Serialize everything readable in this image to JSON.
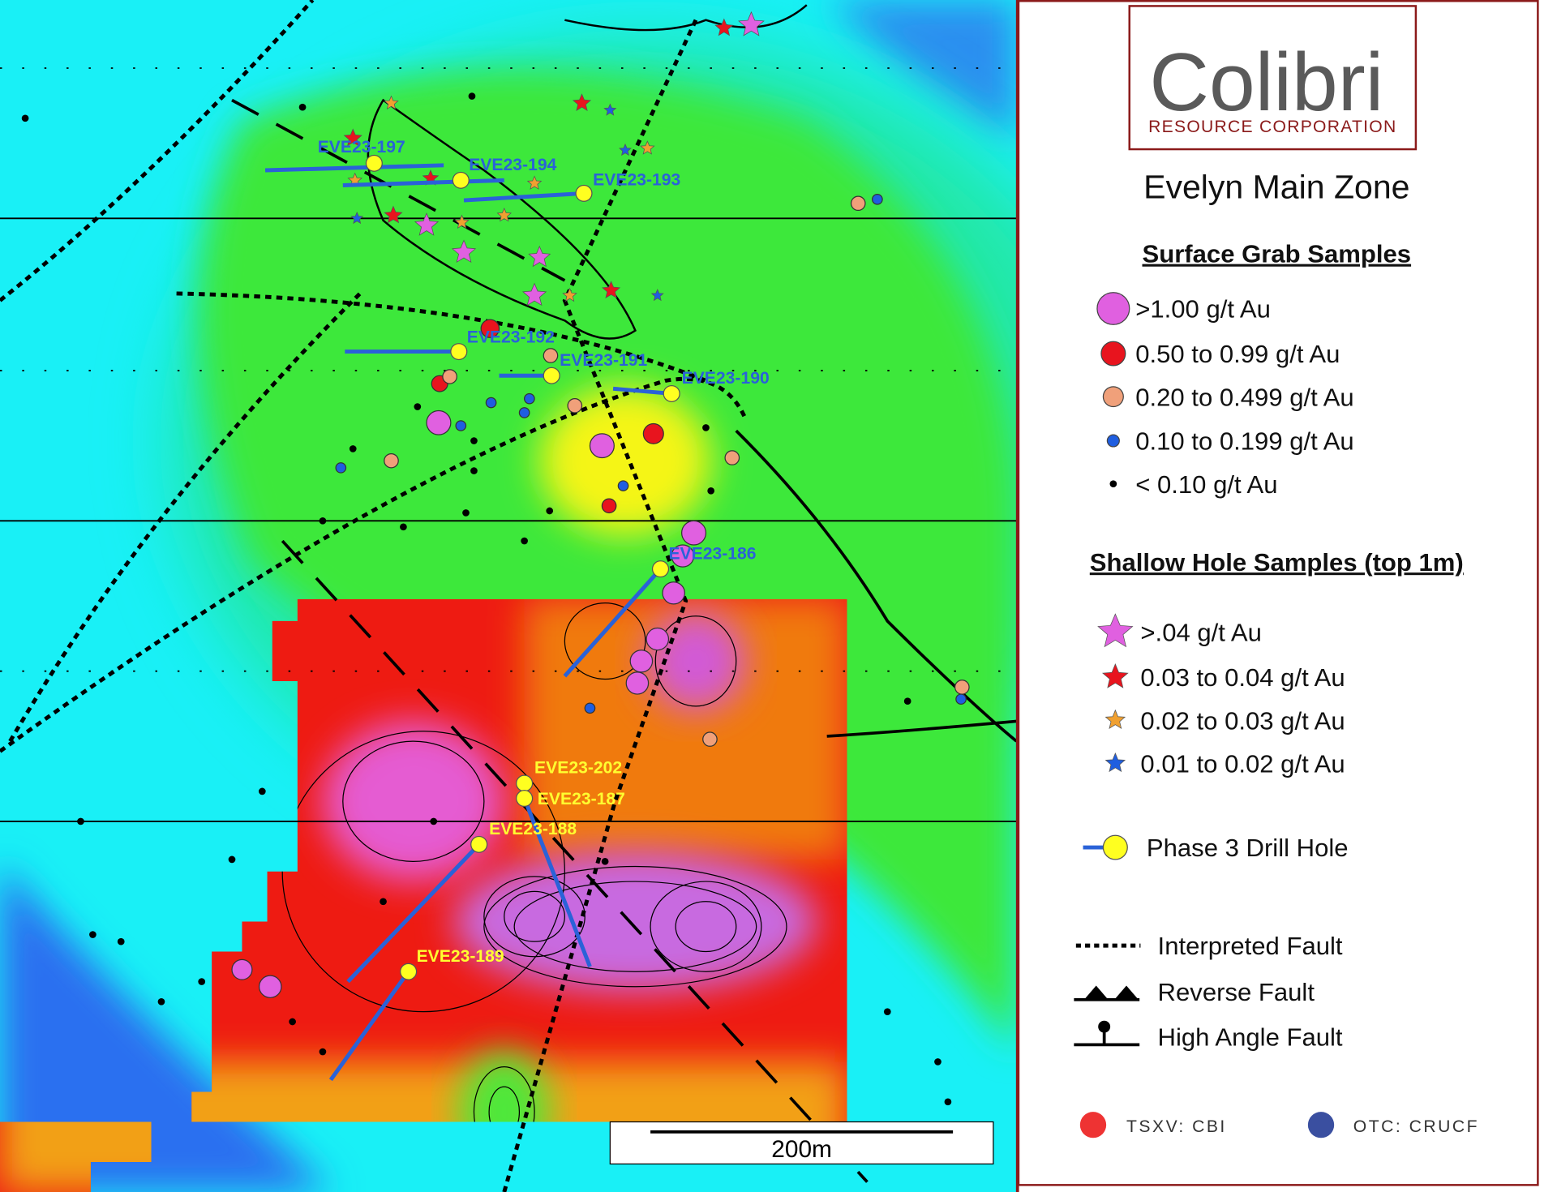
{
  "logo": {
    "name": "Colibri",
    "subtitle": "RESOURCE CORPORATION"
  },
  "title": "Evelyn Main Zone",
  "legend": {
    "surface_heading": "Surface Grab Samples",
    "surface": [
      ">1.00 g/t Au",
      "0.50 to 0.99 g/t Au",
      "0.20 to 0.499 g/t Au",
      "0.10 to 0.199 g/t Au",
      "< 0.10 g/t Au"
    ],
    "shallow_heading": "Shallow Hole Samples (top 1m)",
    "shallow": [
      ">.04 g/t Au",
      "0.03 to 0.04 g/t Au",
      "0.02 to 0.03 g/t Au",
      "0.01 to 0.02 g/t Au"
    ],
    "drill": "Phase 3 Drill Hole",
    "faults": [
      "Interpreted Fault",
      "Reverse Fault",
      "High Angle Fault"
    ]
  },
  "map": {
    "drill_holes": [
      "EVE23-197",
      "EVE23-194",
      "EVE23-193",
      "EVE23-192",
      "EVE23-191",
      "EVE23-190",
      "EVE23-186",
      "EVE23-202",
      "EVE23-187",
      "EVE23-188",
      "EVE23-189"
    ],
    "scale": "200m"
  },
  "tickers": [
    "TSXV: CBI",
    "OTC: CRUCF"
  ]
}
